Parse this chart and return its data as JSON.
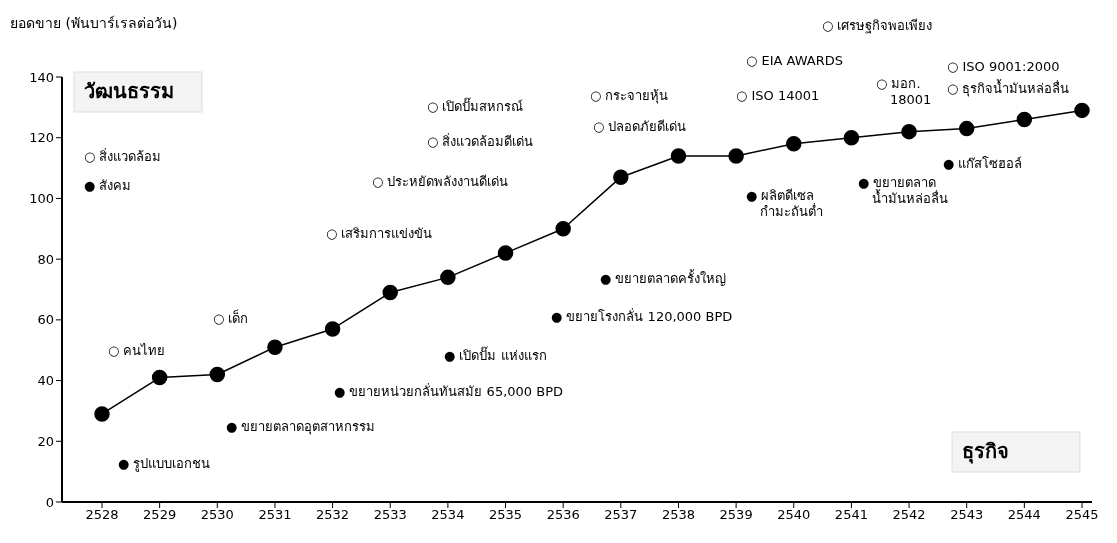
{
  "chart_data": {
    "type": "line",
    "ylabel": "ยอดขาย (พันบาร์เรลต่อวัน)",
    "categories": [
      "2528",
      "2529",
      "2530",
      "2531",
      "2532",
      "2533",
      "2534",
      "2535",
      "2536",
      "2537",
      "2538",
      "2539",
      "2540",
      "2541",
      "2542",
      "2543",
      "2544",
      "2545"
    ],
    "values": [
      29,
      41,
      42,
      51,
      57,
      69,
      74,
      82,
      90,
      107,
      114,
      114,
      118,
      120,
      122,
      123,
      126,
      129
    ],
    "color": "#000000",
    "marker": "circle",
    "ylim": [
      0,
      140
    ],
    "yticks": [
      0,
      20,
      40,
      60,
      80,
      100,
      120,
      140
    ],
    "annotations": [
      "วัฒนธรรม",
      "○ สิ่งแวดล้อม",
      "● สังคม",
      "ธุรกิจ",
      "○ คนไทย",
      "○ เด็ก",
      "● รูปแบบเอกชน",
      "● ขยายตลาดอุตสาหกรรม",
      "○ เสริมการแข่งขัน",
      "● ขยายหน่วยกลั่นทันสมัย 65,000 BPD",
      "● เปิดปั๊ม แห่งแรก",
      "○ ประหยัดพลังงานดีเด่น",
      "○ สิ่งแวดล้อมดีเด่น",
      "○ เปิดปั๊มสหกรณ์",
      "● ขยายโรงกลั่น 120,000 BPD",
      "● ขยายตลาดครั้งใหญ่",
      "○ กระจายหุ้น",
      "○ ปลอดภัยดีเด่น",
      "○ ISO 14001",
      "○ EIA AWARDS",
      "○ เศรษฐกิจพอเพียง",
      "● ผลิตดีเซล\nกำมะถันต่ำ",
      "● ขยายตลาด\nน้ำมันหล่อลื่น",
      "○ มอก.\n18001",
      "● แก๊สโซฮอล์",
      "○ ISO 9001:2000",
      "○ ธุรกิจน้ำมันหล่อลื่น"
    ]
  }
}
